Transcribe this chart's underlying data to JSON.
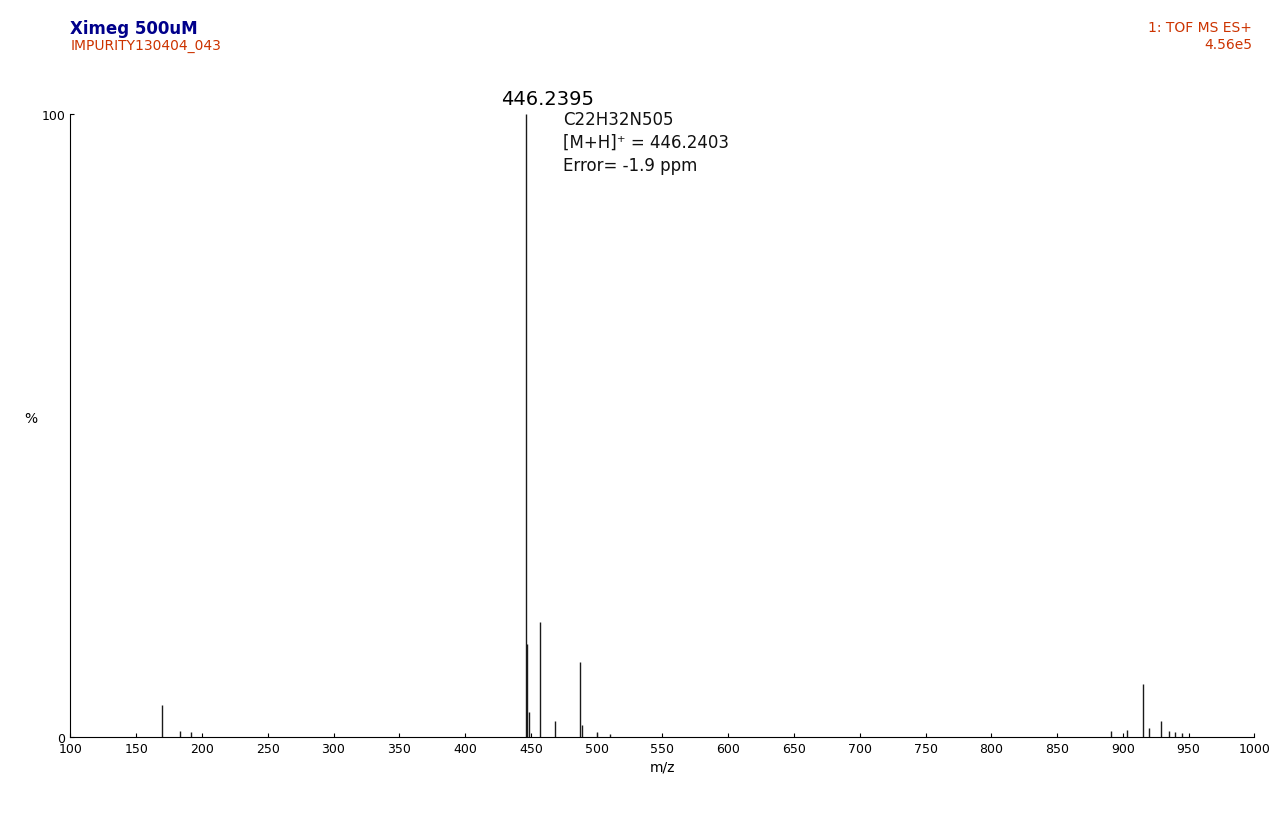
{
  "title_line1": "Ximeg 500uM",
  "title_line2": "IMPURITY130404_043",
  "top_right_line1": "1: TOF MS ES+",
  "top_right_line2": "4.56e5",
  "annotation_formula": "C22H32N505",
  "annotation_mh": "[M+H]⁺ = 446.2403",
  "annotation_error": "Error= -1.9 ppm",
  "annotation_mz": "446.2395",
  "xlabel": "m/z",
  "ylabel": "%",
  "xlim": [
    100,
    1000
  ],
  "ylim": [
    0,
    100
  ],
  "xticks": [
    100,
    150,
    200,
    250,
    300,
    350,
    400,
    450,
    500,
    550,
    600,
    650,
    700,
    750,
    800,
    850,
    900,
    950,
    1000
  ],
  "peaks": [
    {
      "mz": 170.0,
      "intensity": 5.2
    },
    {
      "mz": 183.0,
      "intensity": 1.0
    },
    {
      "mz": 192.0,
      "intensity": 0.8
    },
    {
      "mz": 446.2395,
      "intensity": 100.0
    },
    {
      "mz": 447.24,
      "intensity": 15.0
    },
    {
      "mz": 448.24,
      "intensity": 4.0
    },
    {
      "mz": 457.2,
      "intensity": 18.5
    },
    {
      "mz": 468.0,
      "intensity": 2.5
    },
    {
      "mz": 487.2,
      "intensity": 12.0
    },
    {
      "mz": 489.0,
      "intensity": 2.0
    },
    {
      "mz": 500.0,
      "intensity": 0.8
    },
    {
      "mz": 510.0,
      "intensity": 0.5
    },
    {
      "mz": 891.0,
      "intensity": 1.0
    },
    {
      "mz": 903.0,
      "intensity": 1.2
    },
    {
      "mz": 915.0,
      "intensity": 8.5
    },
    {
      "mz": 920.0,
      "intensity": 1.5
    },
    {
      "mz": 929.0,
      "intensity": 2.5
    },
    {
      "mz": 935.0,
      "intensity": 1.0
    },
    {
      "mz": 940.0,
      "intensity": 0.8
    },
    {
      "mz": 945.0,
      "intensity": 0.6
    }
  ],
  "title_color_line1": "#00008B",
  "title_color_line2": "#CC3300",
  "top_right_color": "#CC3300",
  "peak_color": "#1a1a1a",
  "bg_color": "#ffffff",
  "annotation_mz_fontsize": 14,
  "annotation_formula_fontsize": 12,
  "title_fontsize_line1": 12,
  "title_fontsize_line2": 10,
  "top_right_fontsize": 10
}
